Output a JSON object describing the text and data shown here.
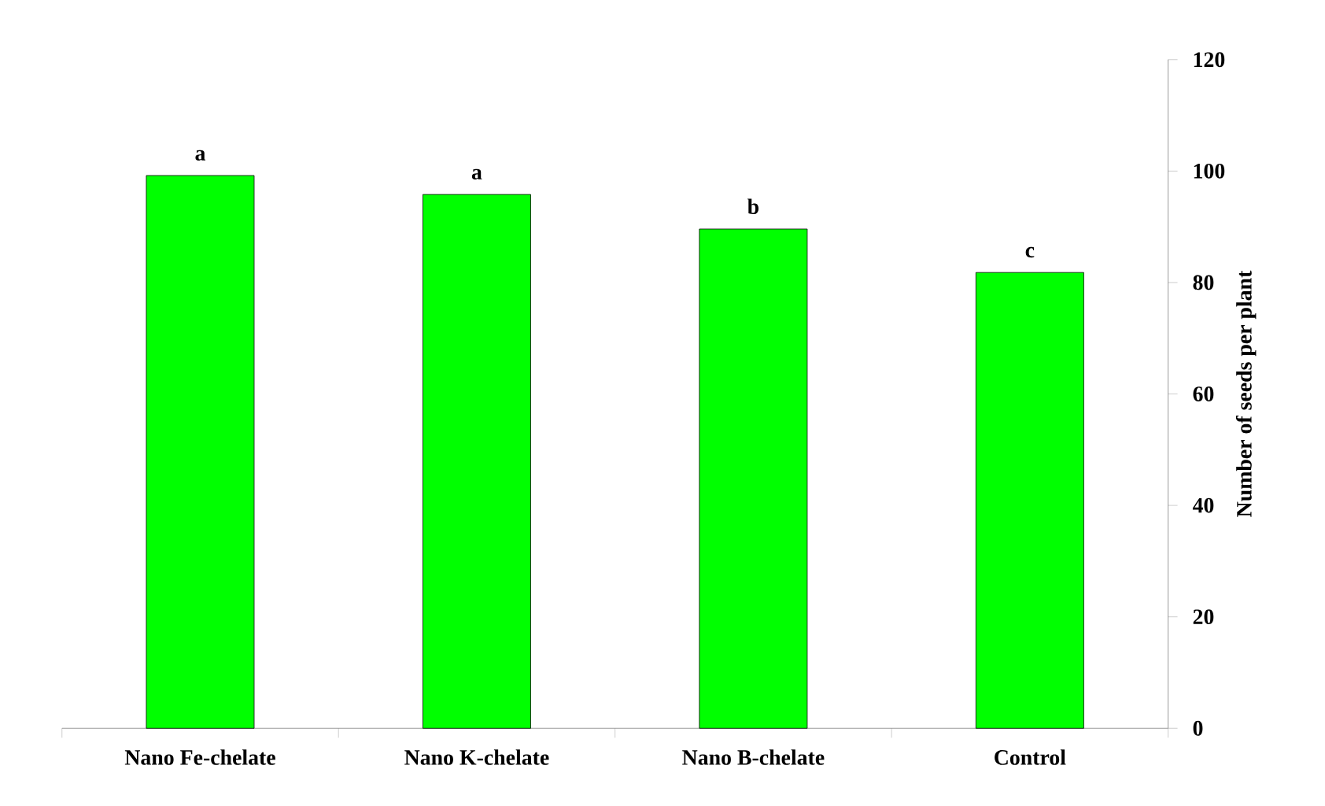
{
  "chart_data": {
    "type": "bar",
    "ylabel": "Number of seeds per plant",
    "categories": [
      "Nano Fe-chelate",
      "Nano K-chelate",
      "Nano B-chelate",
      "Control"
    ],
    "values": [
      99.2,
      95.8,
      89.6,
      81.8
    ],
    "color": "#00ff00",
    "ylim": [
      0,
      120
    ],
    "yticks": [
      0,
      20,
      40,
      60,
      80,
      100,
      120
    ],
    "grid": false,
    "annotations": [
      {
        "text": "a",
        "x": "Nano Fe-chelate",
        "y": 99.2
      },
      {
        "text": "a",
        "x": "Nano K-chelate",
        "y": 95.8
      },
      {
        "text": "b",
        "x": "Nano B-chelate",
        "y": 89.6
      },
      {
        "text": "c",
        "x": "Control",
        "y": 81.8
      }
    ]
  }
}
